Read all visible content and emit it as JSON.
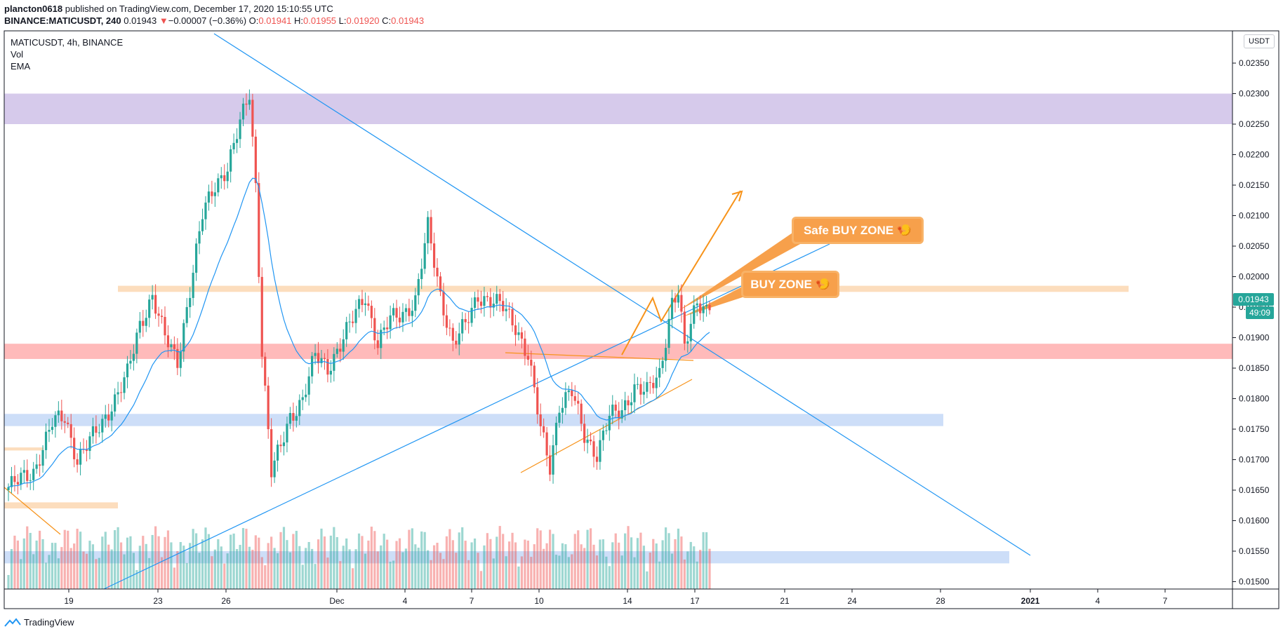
{
  "header": {
    "publisher": "plancton0618",
    "published_text": "published on TradingView.com, December 17, 2020 15:10:55 UTC",
    "symbol_line": "BINANCE:MATICUSDT, 240",
    "last": "0.01943",
    "change_arrow": "▼",
    "change": "−0.00007 (−0.36%)",
    "o_label": "O:",
    "o": "0.01941",
    "h_label": "H:",
    "h": "0.01955",
    "l_label": "L:",
    "l": "0.01920",
    "c_label": "C:",
    "c": "0.01943"
  },
  "legend": {
    "title": "MATICUSDT, 4h, BINANCE",
    "vol": "Vol",
    "ema": "EMA"
  },
  "currency": "USDT",
  "price_tag": {
    "price": "0.01943",
    "countdown": "49:09"
  },
  "callouts": {
    "safe": "Safe BUY ZONE 🍤",
    "buy": "BUY ZONE 🍤"
  },
  "footer": {
    "brand": "TradingView"
  },
  "colors": {
    "up": "#26a69a",
    "down": "#ef5350",
    "ema": "#2196f3",
    "trend": "#2196f3",
    "orange": "#f7931a",
    "zone_purple": "#d1c4e9",
    "zone_red": "#ffb3b3",
    "zone_blue": "#c8daf7",
    "zone_peach": "#fcd9b6"
  },
  "chart_data": {
    "type": "candlestick",
    "y_axis": {
      "ticks": [
        "0.02350",
        "0.02300",
        "0.02250",
        "0.02200",
        "0.02150",
        "0.02100",
        "0.02050",
        "0.02000",
        "0.01950",
        "0.01900",
        "0.01850",
        "0.01800",
        "0.01750",
        "0.01700",
        "0.01650",
        "0.01600",
        "0.01550",
        "0.01500"
      ]
    },
    "x_axis": {
      "ticks": [
        "19",
        "23",
        "26",
        "Dec",
        "4",
        "7",
        "10",
        "14",
        "17",
        "21",
        "24",
        "28",
        "2021",
        "4",
        "7"
      ]
    },
    "price_waypoints": [
      [
        0,
        0.01655
      ],
      [
        8,
        0.0168
      ],
      [
        14,
        0.0176
      ],
      [
        18,
        0.0177
      ],
      [
        22,
        0.017
      ],
      [
        30,
        0.0176
      ],
      [
        38,
        0.0184
      ],
      [
        42,
        0.0192
      ],
      [
        46,
        0.0197
      ],
      [
        50,
        0.019
      ],
      [
        54,
        0.0186
      ],
      [
        58,
        0.0198
      ],
      [
        62,
        0.021
      ],
      [
        66,
        0.0215
      ],
      [
        70,
        0.0218
      ],
      [
        74,
        0.0225
      ],
      [
        77,
        0.023
      ],
      [
        79,
        0.0215
      ],
      [
        81,
        0.0188
      ],
      [
        84,
        0.0168
      ],
      [
        87,
        0.0172
      ],
      [
        90,
        0.0177
      ],
      [
        94,
        0.018
      ],
      [
        98,
        0.0187
      ],
      [
        102,
        0.0185
      ],
      [
        106,
        0.0189
      ],
      [
        110,
        0.0193
      ],
      [
        114,
        0.0197
      ],
      [
        118,
        0.0189
      ],
      [
        122,
        0.0193
      ],
      [
        126,
        0.0194
      ],
      [
        130,
        0.0196
      ],
      [
        134,
        0.0208
      ],
      [
        138,
        0.0197
      ],
      [
        142,
        0.0189
      ],
      [
        146,
        0.0192
      ],
      [
        150,
        0.0197
      ],
      [
        154,
        0.0196
      ],
      [
        158,
        0.0195
      ],
      [
        162,
        0.0192
      ],
      [
        166,
        0.0187
      ],
      [
        170,
        0.0175
      ],
      [
        173,
        0.0169
      ],
      [
        176,
        0.0179
      ],
      [
        180,
        0.0181
      ],
      [
        184,
        0.0174
      ],
      [
        188,
        0.0171
      ],
      [
        192,
        0.0177
      ],
      [
        196,
        0.0178
      ],
      [
        200,
        0.0182
      ],
      [
        204,
        0.0181
      ],
      [
        208,
        0.0184
      ],
      [
        212,
        0.0196
      ],
      [
        214,
        0.01975
      ],
      [
        216,
        0.0188
      ],
      [
        220,
        0.0196
      ],
      [
        224,
        0.01945
      ]
    ],
    "zones": [
      {
        "color": "zone_purple",
        "from": 0.0225,
        "to": 0.023
      },
      {
        "color": "zone_peach",
        "from": 0.01975,
        "to": 0.01985
      },
      {
        "color": "zone_red",
        "from": 0.01865,
        "to": 0.0189
      },
      {
        "color": "zone_blue",
        "from": 0.01755,
        "to": 0.01775
      },
      {
        "color": "zone_blue",
        "from": 0.0153,
        "to": 0.0155
      },
      {
        "color": "zone_peach",
        "from": 0.0162,
        "to": 0.0163
      },
      {
        "color": "zone_peach",
        "from": 0.01715,
        "to": 0.0172
      }
    ]
  }
}
